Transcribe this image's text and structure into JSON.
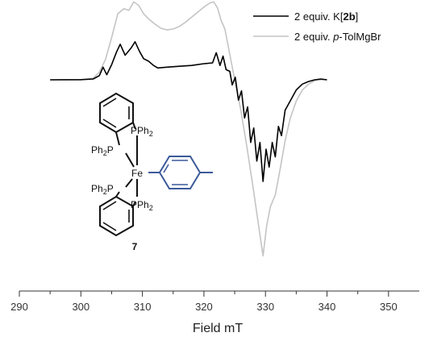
{
  "chart_data": {
    "type": "line",
    "title": "",
    "xlabel": "Field mT",
    "ylabel": "",
    "xlim": [
      290,
      355
    ],
    "xticks": [
      290,
      300,
      310,
      320,
      330,
      340,
      350
    ],
    "grid": false,
    "legend_position": "top-right",
    "series": [
      {
        "name_prefix": "2 equiv. K[",
        "name_bold": "2b",
        "name_suffix": "]",
        "color": "#000000",
        "points": [
          [
            295,
            0
          ],
          [
            300,
            0.002
          ],
          [
            302,
            0.01
          ],
          [
            303,
            0.05
          ],
          [
            303.6,
            0.15
          ],
          [
            304.2,
            0.06
          ],
          [
            305,
            0.18
          ],
          [
            305.8,
            0.33
          ],
          [
            306.4,
            0.42
          ],
          [
            307.2,
            0.29
          ],
          [
            308.2,
            0.38
          ],
          [
            308.8,
            0.45
          ],
          [
            309.5,
            0.34
          ],
          [
            310.2,
            0.25
          ],
          [
            311,
            0.22
          ],
          [
            311.8,
            0.17
          ],
          [
            312.5,
            0.14
          ],
          [
            314,
            0.15
          ],
          [
            316,
            0.16
          ],
          [
            318,
            0.17
          ],
          [
            320,
            0.19
          ],
          [
            321.4,
            0.2
          ],
          [
            322,
            0.32
          ],
          [
            322.6,
            0.17
          ],
          [
            323.1,
            0.28
          ],
          [
            323.6,
            0.12
          ],
          [
            324.2,
            0.1
          ],
          [
            324.6,
            -0.06
          ],
          [
            325.1,
            0.03
          ],
          [
            325.6,
            -0.24
          ],
          [
            326.1,
            -0.13
          ],
          [
            326.6,
            -0.45
          ],
          [
            327.1,
            -0.32
          ],
          [
            327.6,
            -0.74
          ],
          [
            328.1,
            -0.57
          ],
          [
            328.6,
            -0.96
          ],
          [
            329.1,
            -0.74
          ],
          [
            329.6,
            -1.2
          ],
          [
            330.1,
            -0.82
          ],
          [
            330.6,
            -1.03
          ],
          [
            331.1,
            -0.74
          ],
          [
            331.6,
            -0.91
          ],
          [
            332.1,
            -0.55
          ],
          [
            332.6,
            -0.66
          ],
          [
            333.2,
            -0.36
          ],
          [
            333.8,
            -0.28
          ],
          [
            335,
            -0.12
          ],
          [
            336,
            -0.05
          ],
          [
            337,
            -0.02
          ],
          [
            338,
            0
          ],
          [
            339,
            0.01
          ],
          [
            340,
            0
          ]
        ]
      },
      {
        "name_prefix": "2 equiv. ",
        "name_italic": "p",
        "name_suffix": "-TolMgBr",
        "color": "#c4c4c4",
        "points": [
          [
            295,
            0
          ],
          [
            300,
            0
          ],
          [
            302,
            0.02
          ],
          [
            303,
            0.09
          ],
          [
            304,
            0.24
          ],
          [
            305,
            0.5
          ],
          [
            306,
            0.78
          ],
          [
            307,
            0.84
          ],
          [
            307.8,
            0.82
          ],
          [
            308.6,
            0.92
          ],
          [
            309.4,
            0.88
          ],
          [
            310.2,
            0.78
          ],
          [
            311,
            0.72
          ],
          [
            312,
            0.66
          ],
          [
            313,
            0.61
          ],
          [
            314,
            0.59
          ],
          [
            315,
            0.6
          ],
          [
            316,
            0.63
          ],
          [
            317,
            0.68
          ],
          [
            318,
            0.74
          ],
          [
            319,
            0.8
          ],
          [
            320,
            0.86
          ],
          [
            321,
            0.91
          ],
          [
            321.6,
            0.92
          ],
          [
            322.2,
            0.85
          ],
          [
            322.8,
            0.7
          ],
          [
            323.4,
            0.6
          ],
          [
            324.2,
            0.3
          ],
          [
            325,
            0
          ],
          [
            326,
            -0.36
          ],
          [
            327,
            -0.8
          ],
          [
            328,
            -1.28
          ],
          [
            329,
            -1.78
          ],
          [
            329.6,
            -2.08
          ],
          [
            330.2,
            -1.72
          ],
          [
            330.8,
            -1.5
          ],
          [
            331.6,
            -1.36
          ],
          [
            332.4,
            -1.05
          ],
          [
            333.2,
            -0.72
          ],
          [
            334,
            -0.46
          ],
          [
            335,
            -0.25
          ],
          [
            336,
            -0.12
          ],
          [
            337,
            -0.05
          ],
          [
            338,
            -0.01
          ],
          [
            339,
            0
          ],
          [
            340,
            0
          ]
        ]
      }
    ]
  },
  "compound": {
    "label": "7",
    "metal": "Fe",
    "phosphine_prefix": "Ph",
    "phosphine_sub": "2",
    "phosphine_atom": "P",
    "aryl_color": "#3c5a9a"
  }
}
